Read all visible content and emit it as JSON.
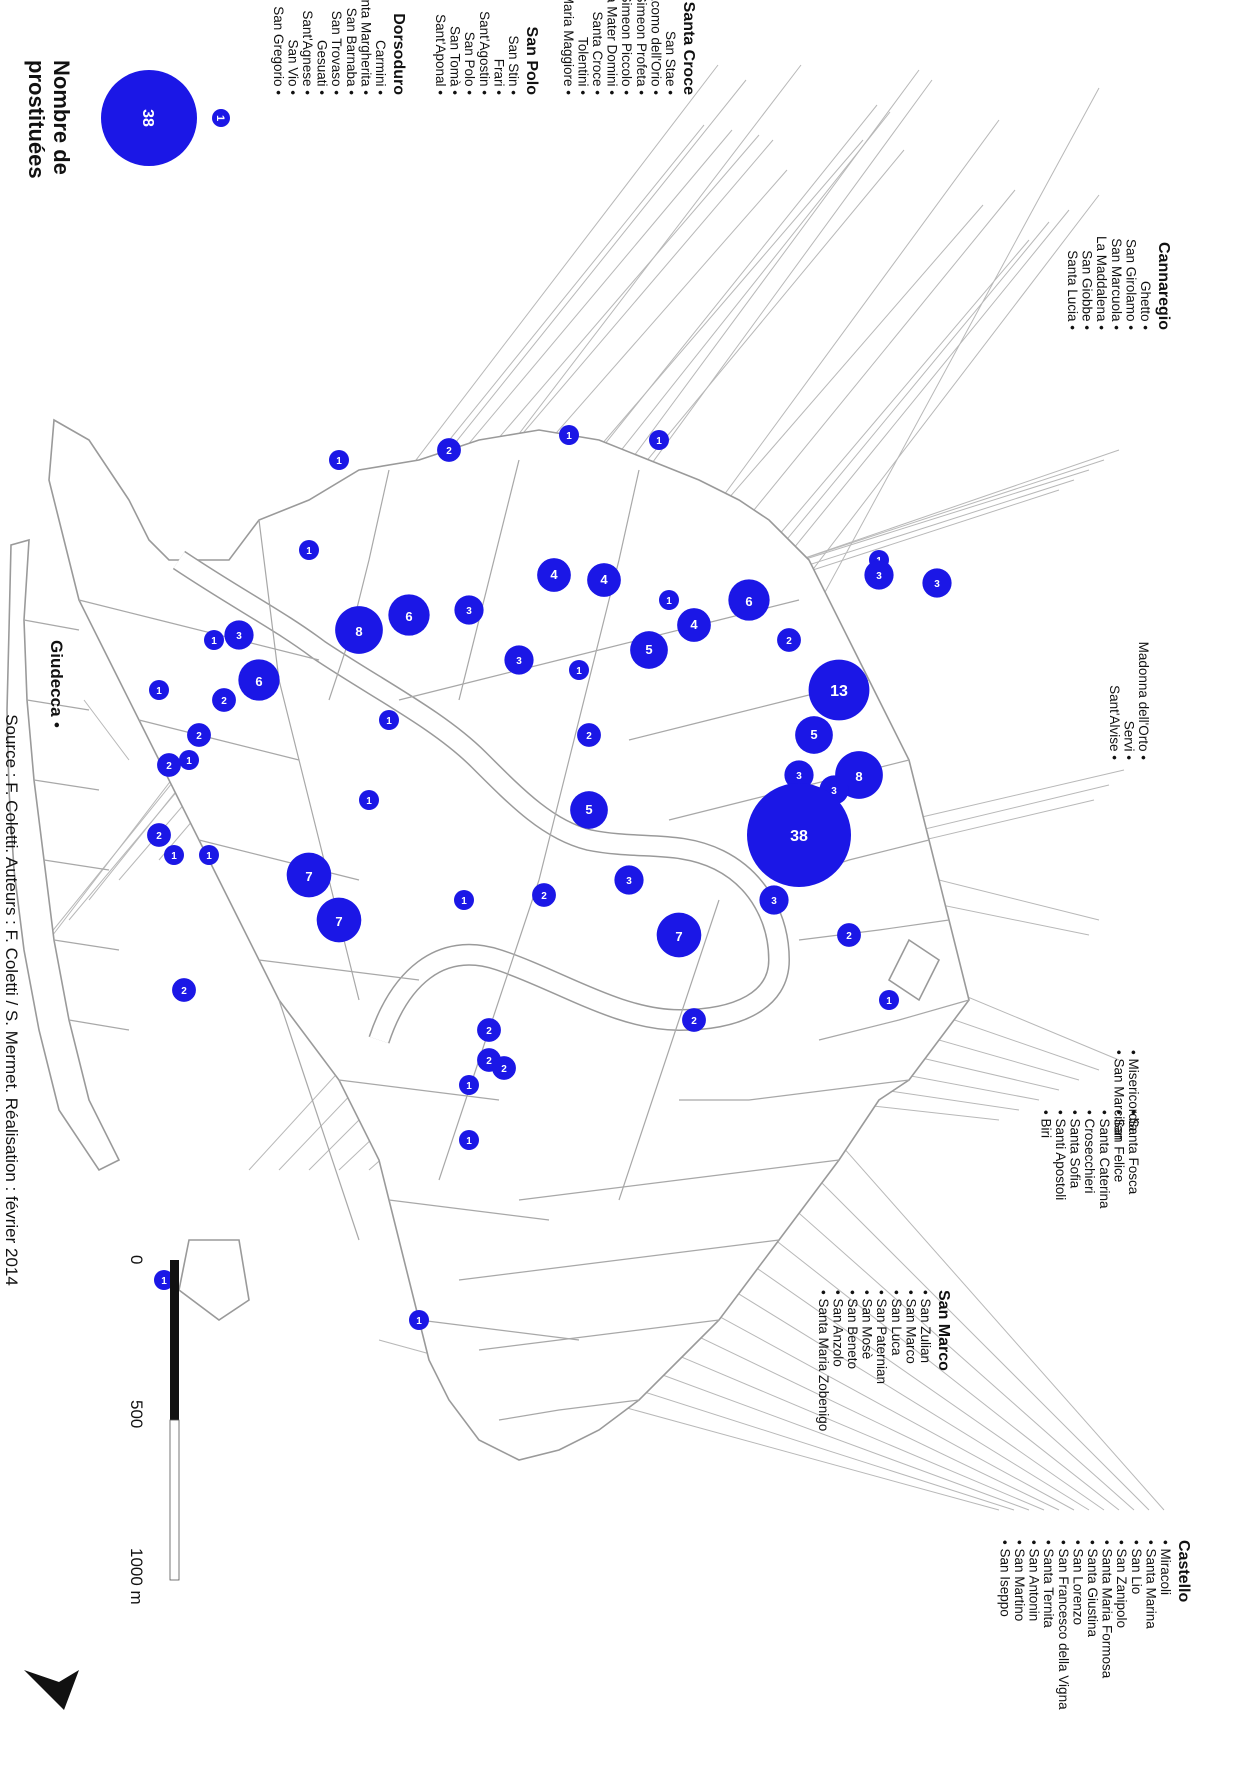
{
  "legend": {
    "title_line1": "Nombre de",
    "title_line2": "prostituées",
    "max_value": "38",
    "min_value": "1"
  },
  "districts": {
    "santa_croce": {
      "title": "Santa Croce",
      "items": [
        "San Stae",
        "San Giacomo dell'Orio",
        "San Simeon Profeta",
        "San Simeon Piccolo",
        "Santa Maria Mater Domini",
        "Santa Croce",
        "Tolentini",
        "Santa Maria Maggiore"
      ]
    },
    "san_polo": {
      "title": "San Polo",
      "items": [
        "San Stin",
        "Frari",
        "Sant'Agostin",
        "San Polo",
        "San Tomà",
        "Sant'Aponal"
      ]
    },
    "dorsoduro": {
      "title": "Dorsoduro",
      "items": [
        "Carmini",
        "Santa Margherita",
        "San Barnaba",
        "San Trovaso",
        "Gesuati",
        "Sant'Agnese",
        "San Vio",
        "San Gregorio"
      ]
    },
    "cannaregio": {
      "title": "Cannaregio",
      "items": [
        "Ghetto",
        "San Girolamo",
        "San Marcuola",
        "La Maddalena",
        "San Giobbe",
        "Santa Lucia"
      ],
      "items_north": [
        "Madonna dell'Orto",
        "Servi",
        "Sant'Alvise"
      ],
      "items_east": [
        "Misericordia",
        "San Marcilian"
      ],
      "items_east2": [
        "Santa Fosca",
        "San Felice",
        "Santa Caterina",
        "Crosecchieri",
        "Santa Sofia",
        "Santi Apostoli",
        "Biri"
      ]
    },
    "san_marco": {
      "title": "San Marco",
      "items": [
        "San Zulian",
        "San Marco",
        "San Luca",
        "San Paternian",
        "San Mosè",
        "San Beneto",
        "San Anzolo",
        "Santa Maria Zobenigo"
      ]
    },
    "castello": {
      "title": "Castello",
      "items": [
        "Miracoli",
        "Santa Marina",
        "San Lio",
        "San Zanipolo",
        "Santa Maria Formosa",
        "Santa Giustina",
        "San Lorenzo",
        "San Francesco della Vigna",
        "Santa Ternita",
        "San Antonin",
        "San Martino",
        "San Iseppo"
      ]
    }
  },
  "giudecca_label": "Giudecca",
  "scale": {
    "labels": [
      "0",
      "500",
      "1000 m"
    ]
  },
  "source_text": "Source : F. Coletti. Auteurs : F. Coletti / S. Mermet. Réalisation : février 2014",
  "circles": [
    "1",
    "2",
    "1",
    "1",
    "1",
    "4",
    "3",
    "3",
    "6",
    "3",
    "1",
    "6",
    "8",
    "4",
    "4",
    "1",
    "13",
    "2",
    "1",
    "3",
    "3",
    "1",
    "5",
    "5",
    "1",
    "1",
    "2",
    "1",
    "2",
    "2",
    "8",
    "3",
    "3",
    "1",
    "7",
    "2",
    "2",
    "2",
    "1",
    "3",
    "5",
    "1",
    "6",
    "2",
    "38",
    "3",
    "2",
    "1",
    "1",
    "7",
    "7",
    "2",
    "2",
    "2",
    "2",
    "1",
    "1",
    "1",
    "1"
  ],
  "colors": {
    "circle_fill": "#1b17e6",
    "circle_text": "#ffffff",
    "outline": "#9a9a9a",
    "leader": "#b0b0b0",
    "text": "#111111"
  }
}
